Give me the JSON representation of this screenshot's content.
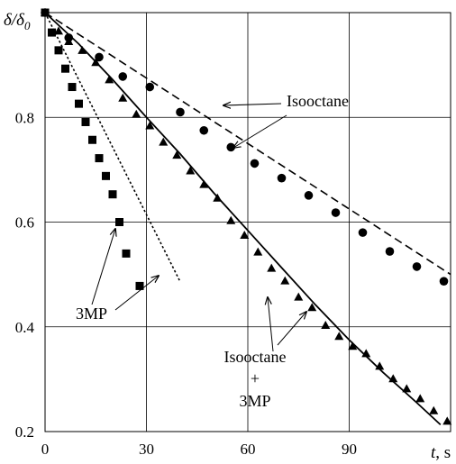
{
  "chart_data": {
    "type": "scatter",
    "title": "",
    "xlabel": {
      "symbol": "t",
      "unit": ", s"
    },
    "ylabel": {
      "symbol": "δ/δ",
      "sub": "0"
    },
    "xlim": [
      0,
      120
    ],
    "ylim": [
      0.2,
      1.0
    ],
    "xticks": [
      0,
      30,
      60,
      90
    ],
    "yticks": [
      0.2,
      0.4,
      0.6,
      0.8
    ],
    "grid": true,
    "legend": "none",
    "series": [
      {
        "marker": "circle",
        "points": [
          [
            0,
            1.0
          ],
          [
            7,
            0.952
          ],
          [
            16,
            0.915
          ],
          [
            23,
            0.878
          ],
          [
            31,
            0.858
          ],
          [
            40,
            0.81
          ],
          [
            47,
            0.775
          ],
          [
            55,
            0.743
          ],
          [
            62,
            0.712
          ],
          [
            70,
            0.684
          ],
          [
            78,
            0.651
          ],
          [
            86,
            0.618
          ],
          [
            94,
            0.58
          ],
          [
            102,
            0.544
          ],
          [
            110,
            0.515
          ],
          [
            118,
            0.487
          ]
        ]
      },
      {
        "marker": "triangle",
        "points": [
          [
            0,
            1.0
          ],
          [
            4,
            0.965
          ],
          [
            7,
            0.945
          ],
          [
            11,
            0.928
          ],
          [
            15,
            0.905
          ],
          [
            19,
            0.872
          ],
          [
            23,
            0.837
          ],
          [
            27,
            0.806
          ],
          [
            31,
            0.784
          ],
          [
            35,
            0.753
          ],
          [
            39,
            0.728
          ],
          [
            43,
            0.698
          ],
          [
            47,
            0.672
          ],
          [
            51,
            0.646
          ],
          [
            55,
            0.603
          ],
          [
            59,
            0.575
          ],
          [
            63,
            0.543
          ],
          [
            67,
            0.512
          ],
          [
            71,
            0.488
          ],
          [
            75,
            0.457
          ],
          [
            79,
            0.437
          ],
          [
            83,
            0.403
          ],
          [
            87,
            0.382
          ],
          [
            91,
            0.363
          ],
          [
            95,
            0.349
          ],
          [
            99,
            0.325
          ],
          [
            103,
            0.301
          ],
          [
            107,
            0.282
          ],
          [
            111,
            0.263
          ],
          [
            115,
            0.24
          ],
          [
            119,
            0.22
          ]
        ]
      },
      {
        "marker": "square",
        "points": [
          [
            0,
            1.0
          ],
          [
            2,
            0.962
          ],
          [
            4,
            0.928
          ],
          [
            6,
            0.893
          ],
          [
            8,
            0.858
          ],
          [
            10,
            0.826
          ],
          [
            12,
            0.791
          ],
          [
            14,
            0.757
          ],
          [
            16,
            0.722
          ],
          [
            18,
            0.688
          ],
          [
            20,
            0.653
          ],
          [
            22,
            0.6
          ],
          [
            24,
            0.54
          ],
          [
            28,
            0.478
          ]
        ]
      }
    ],
    "lines": [
      {
        "style": "dashed",
        "points": [
          [
            0,
            1.0
          ],
          [
            120,
            0.5
          ]
        ]
      },
      {
        "style": "solid",
        "points": [
          [
            0,
            1.0
          ],
          [
            10,
            0.94
          ],
          [
            20,
            0.872
          ],
          [
            30,
            0.8
          ],
          [
            40,
            0.73
          ],
          [
            50,
            0.655
          ],
          [
            60,
            0.584
          ],
          [
            70,
            0.513
          ],
          [
            80,
            0.442
          ],
          [
            90,
            0.375
          ],
          [
            100,
            0.313
          ],
          [
            110,
            0.255
          ],
          [
            117,
            0.213
          ]
        ]
      },
      {
        "style": "dotted",
        "points": [
          [
            0,
            1.0
          ],
          [
            40,
            0.486
          ]
        ]
      }
    ],
    "annotations": [
      {
        "text": "Isooctane",
        "lines": [
          "Isooctane"
        ]
      },
      {
        "text": "3MP",
        "lines": [
          "3MP"
        ]
      },
      {
        "text": "Isooctane + 3MP",
        "lines": [
          "Isooctane",
          "+",
          "3MP"
        ]
      }
    ]
  }
}
